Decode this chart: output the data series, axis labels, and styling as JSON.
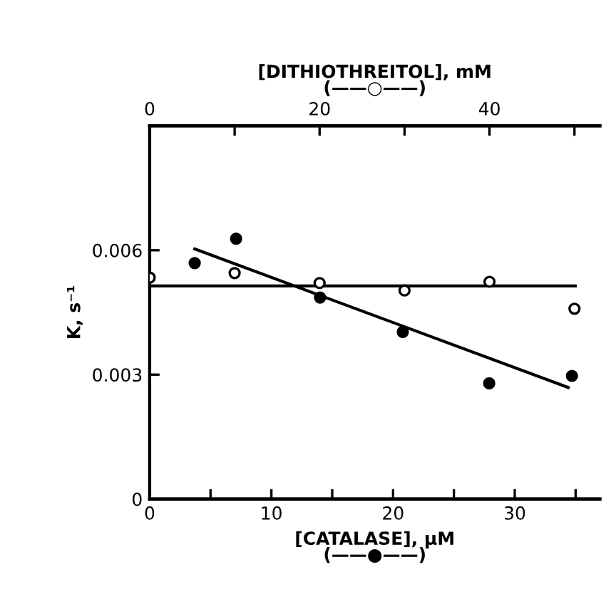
{
  "chart_data": {
    "type": "scatter",
    "xlabel": "[CATALASE], µM\n(——●——)",
    "x2label": "[DITHIOTHREITOL], mM\n(——○——)",
    "ylabel": "K, s⁻¹",
    "xlim": [
      0,
      37
    ],
    "xticks": [
      0,
      {
        "value": 5,
        "label": null
      },
      10,
      {
        "value": 15,
        "label": null
      },
      20,
      {
        "value": 25,
        "label": null
      },
      30,
      {
        "value": 35,
        "label": null
      }
    ],
    "x2lim": [
      0,
      53
    ],
    "x2ticks": [
      0,
      {
        "value": 10,
        "label": null
      },
      20,
      {
        "value": 30,
        "label": null
      },
      40,
      {
        "value": 50,
        "label": null
      }
    ],
    "ylim": [
      0,
      0.009
    ],
    "yticks": [
      0,
      0.003,
      0.006
    ],
    "grid": false,
    "legend": false,
    "series": [
      {
        "color": "#000000",
        "marker": "circle",
        "x": [
          3.7,
          7.1,
          14.0,
          20.8,
          27.9,
          34.7
        ],
        "values": [
          0.00569,
          0.00628,
          0.00486,
          0.00403,
          0.00279,
          0.00297
        ]
      },
      {
        "type": "line",
        "color": "#000000",
        "marker": "none",
        "line_style": "solid",
        "x": [
          3.7,
          34.4
        ],
        "values": [
          0.00603,
          0.00269
        ]
      },
      {
        "axis": "x2",
        "color": "#000000",
        "marker": "circle",
        "x": [
          0,
          10,
          20,
          30,
          40,
          50
        ],
        "values": [
          0.00534,
          0.00545,
          0.00521,
          0.00503,
          0.00524,
          0.00459
        ]
      },
      {
        "type": "line",
        "axis": "x2",
        "color": "#000000",
        "marker": "none",
        "line_style": "solid",
        "x": [
          0,
          50.1
        ],
        "values": [
          0.00514,
          0.00514
        ]
      }
    ]
  }
}
